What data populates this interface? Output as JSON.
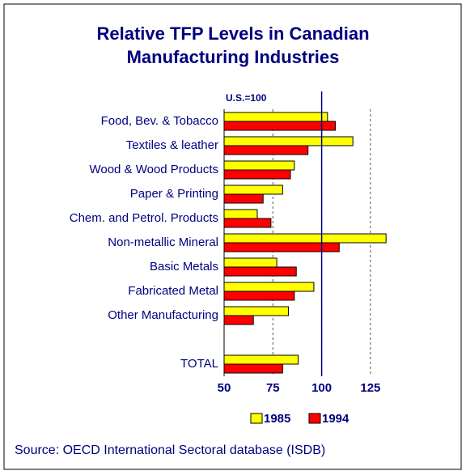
{
  "chart_data": {
    "type": "hbar",
    "title": [
      "Relative TFP Levels in Canadian",
      "Manufacturing Industries"
    ],
    "categories": [
      "Food, Bev. & Tobacco",
      "Textiles & leather",
      "Wood & Wood Products",
      "Paper & Printing",
      "Chem. and Petrol. Products",
      "Non-metallic Mineral",
      "Basic Metals",
      "Fabricated Metal",
      "Other Manufacturing",
      null,
      "TOTAL"
    ],
    "series": [
      {
        "name": "1985",
        "color": "#ffff00",
        "values": [
          103,
          116,
          86,
          80,
          67,
          133,
          77,
          96,
          83,
          null,
          88
        ]
      },
      {
        "name": "1994",
        "color": "#ff0000",
        "values": [
          107,
          93,
          84,
          70,
          74,
          109,
          87,
          86,
          65,
          null,
          80
        ]
      }
    ],
    "xlim": [
      50,
      135
    ],
    "xticks": [
      50,
      75,
      100,
      125
    ],
    "grid": true,
    "reference_line": {
      "value": 100,
      "label": "U.S.=100"
    },
    "legend": "bottom",
    "source": "Source:  OECD International Sectoral database (ISDB)"
  }
}
